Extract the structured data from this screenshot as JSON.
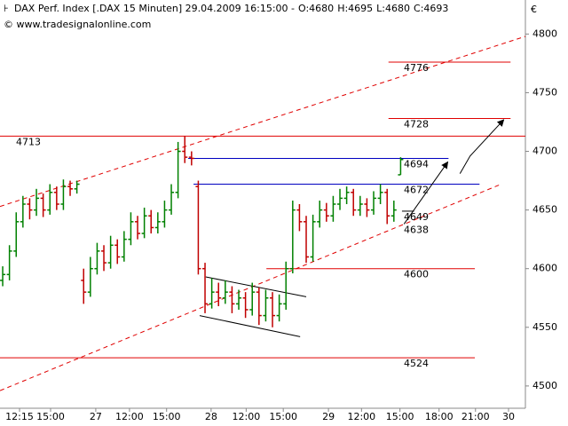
{
  "chart_data": {
    "type": "ohlc",
    "header": {
      "text": "DAX Perf. Index [.DAX  15 Minuten] 29.04.2009 16:15:00 -",
      "open": "O:4680",
      "high": "H:4695",
      "low": "L:4680",
      "close": "C:4693"
    },
    "watermark": "© www.tradesignalonline.com",
    "currency": "€",
    "x": [
      0,
      1,
      2,
      3,
      4,
      5,
      6,
      7,
      8,
      9,
      10,
      11,
      12,
      13,
      14,
      15,
      16,
      17,
      18,
      19,
      20,
      21,
      22,
      23,
      24,
      25,
      26,
      27,
      28,
      29,
      30,
      31,
      32,
      33,
      34,
      35,
      36,
      37,
      38,
      39,
      40,
      41,
      42,
      43,
      44,
      45,
      46,
      47,
      48,
      49,
      50,
      51,
      52,
      53,
      54,
      55,
      56,
      57,
      58,
      59
    ],
    "open": [
      4590,
      4595,
      4615,
      4640,
      4655,
      4650,
      4660,
      4650,
      4665,
      4655,
      4670,
      4668,
      4590,
      4580,
      4600,
      4615,
      4605,
      4620,
      4610,
      4625,
      4640,
      4630,
      4645,
      4635,
      4640,
      4650,
      4665,
      4700,
      4695,
      4670,
      4600,
      4570,
      4580,
      4575,
      4580,
      4570,
      4575,
      4565,
      4580,
      4560,
      4575,
      4560,
      4570,
      4600,
      4650,
      4640,
      4610,
      4640,
      4650,
      4645,
      4655,
      4660,
      4665,
      4650,
      4655,
      4650,
      4660,
      4665,
      4645,
      4680
    ],
    "high": [
      4602,
      4620,
      4648,
      4662,
      4660,
      4668,
      4664,
      4672,
      4670,
      4676,
      4675,
      4675,
      4600,
      4610,
      4622,
      4620,
      4628,
      4625,
      4632,
      4648,
      4645,
      4652,
      4650,
      4648,
      4658,
      4672,
      4708,
      4713,
      4700,
      4675,
      4605,
      4592,
      4588,
      4590,
      4585,
      4582,
      4580,
      4588,
      4584,
      4582,
      4580,
      4578,
      4606,
      4658,
      4655,
      4645,
      4646,
      4658,
      4656,
      4662,
      4668,
      4670,
      4668,
      4662,
      4660,
      4666,
      4672,
      4668,
      4658,
      4695
    ],
    "low": [
      4585,
      4590,
      4610,
      4635,
      4642,
      4645,
      4644,
      4646,
      4650,
      4650,
      4662,
      4664,
      4570,
      4576,
      4595,
      4598,
      4600,
      4604,
      4606,
      4620,
      4625,
      4626,
      4630,
      4630,
      4635,
      4646,
      4660,
      4690,
      4688,
      4595,
      4562,
      4566,
      4568,
      4570,
      4562,
      4565,
      4558,
      4560,
      4552,
      4555,
      4550,
      4555,
      4565,
      4596,
      4632,
      4605,
      4606,
      4635,
      4640,
      4640,
      4650,
      4655,
      4645,
      4645,
      4644,
      4646,
      4655,
      4638,
      4640,
      4680
    ],
    "close": [
      4595,
      4615,
      4640,
      4655,
      4650,
      4660,
      4650,
      4665,
      4655,
      4670,
      4668,
      4672,
      4580,
      4600,
      4615,
      4605,
      4620,
      4610,
      4625,
      4640,
      4630,
      4645,
      4635,
      4640,
      4650,
      4665,
      4700,
      4695,
      4694,
      4600,
      4570,
      4580,
      4575,
      4580,
      4570,
      4575,
      4565,
      4580,
      4560,
      4575,
      4560,
      4570,
      4600,
      4650,
      4640,
      4610,
      4640,
      4650,
      4645,
      4655,
      4660,
      4665,
      4650,
      4655,
      4650,
      4660,
      4665,
      4645,
      4650,
      4693
    ],
    "up_color": "#008000",
    "down_color": "#c00000",
    "xlim": [
      -0.4,
      77.5
    ],
    "ylim": [
      4481,
      4829
    ],
    "yticks": [
      4500,
      4550,
      4600,
      4650,
      4700,
      4750,
      4800
    ],
    "xticks": [
      {
        "value": 2.5,
        "label": "12:15"
      },
      {
        "value": 7.1,
        "label": "15:00"
      },
      {
        "value": 13.8,
        "label": "27"
      },
      {
        "value": 18.8,
        "label": "12:00"
      },
      {
        "value": 24.3,
        "label": "15:00"
      },
      {
        "value": 30.9,
        "label": "28"
      },
      {
        "value": 36.1,
        "label": "12:00"
      },
      {
        "value": 41.6,
        "label": "15:00"
      },
      {
        "value": 48.3,
        "label": "29"
      },
      {
        "value": 53.2,
        "label": "12:00"
      },
      {
        "value": 58.9,
        "label": "15:00"
      },
      {
        "value": 64.7,
        "label": "18:00"
      },
      {
        "value": 70.1,
        "label": "21:00"
      },
      {
        "value": 75,
        "label": "30"
      }
    ],
    "levels": [
      {
        "value": 4776,
        "label": "4776",
        "x": [
          57.2,
          75.3
        ],
        "color": "#e00000"
      },
      {
        "value": 4728,
        "label": "4728",
        "x": [
          57.2,
          75.3
        ],
        "color": "#e00000"
      },
      {
        "value": 4713,
        "label": "4713",
        "x": [
          -0.4,
          77.5
        ],
        "color": "#e00000"
      },
      {
        "value": 4694,
        "label": "4694",
        "x": [
          27.5,
          66.1
        ],
        "color": "#0000c0"
      },
      {
        "value": 4672,
        "label": "4672",
        "x": [
          28.3,
          70.7
        ],
        "color": "#0000c0"
      },
      {
        "value": 4649,
        "label": "4649",
        "x": [
          59.2,
          61
        ],
        "color": "#000000"
      },
      {
        "value": 4638,
        "label": "4638",
        "color": "#e00000"
      },
      {
        "value": 4600,
        "label": "4600",
        "x": [
          39.1,
          70
        ],
        "color": "#e00000"
      },
      {
        "value": 4524,
        "label": "4524",
        "x": [
          -0.4,
          70
        ],
        "color": "#e00000"
      }
    ],
    "trendlines": [
      {
        "x": [
          -0.4,
          77.5
        ],
        "y": [
          4653,
          4798
        ],
        "color": "#e00000",
        "dashed": true
      },
      {
        "x": [
          -0.4,
          73.9
        ],
        "y": [
          4496,
          4672
        ],
        "color": "#e00000",
        "dashed": true
      },
      {
        "x": [
          30.1,
          45
        ],
        "y": [
          4593,
          4576
        ],
        "color": "#000000",
        "dashed": false
      },
      {
        "x": [
          29.2,
          44.1
        ],
        "y": [
          4560,
          4542
        ],
        "color": "#000000",
        "dashed": false
      }
    ],
    "arrows": [
      {
        "x": [
          59.5,
          66
        ],
        "y": [
          4638,
          4691
        ]
      },
      {
        "x": [
          67.8,
          69.3,
          74.3
        ],
        "y": [
          4681,
          4696,
          4727
        ]
      }
    ]
  }
}
